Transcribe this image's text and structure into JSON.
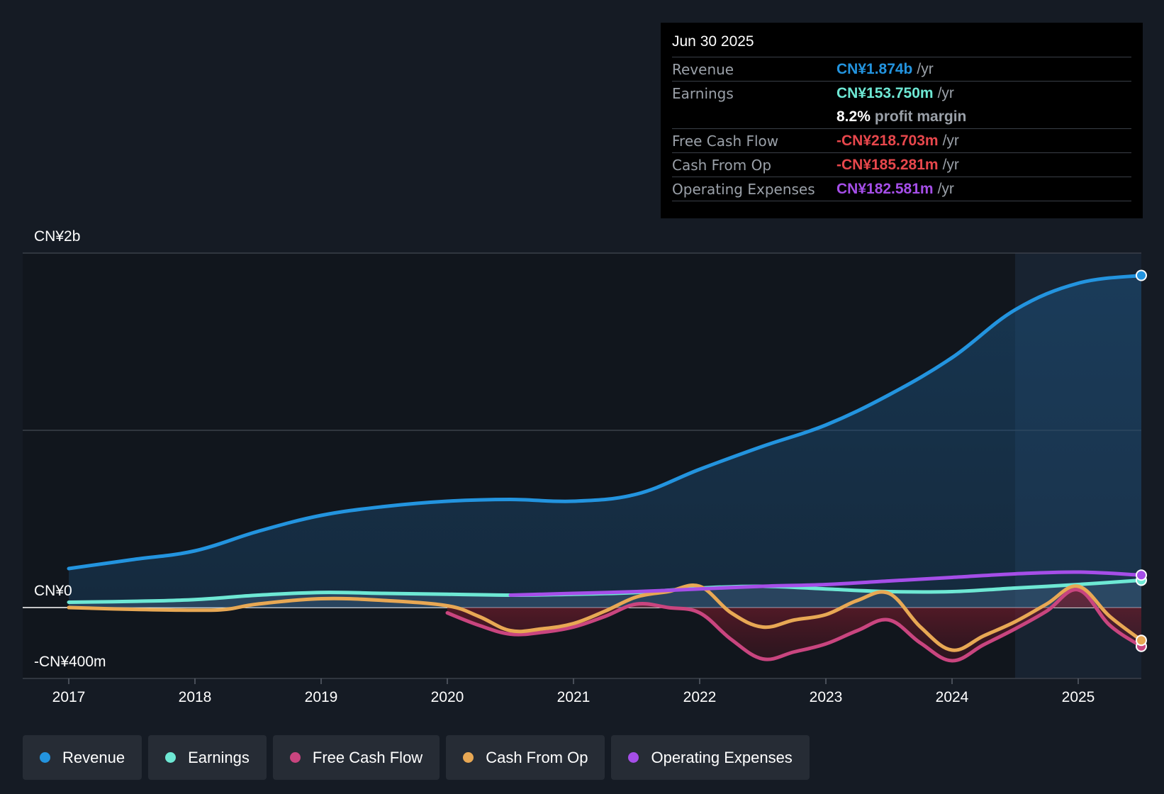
{
  "chart_data": {
    "type": "line",
    "title": "",
    "xlabel": "",
    "ylabel": "",
    "x_ticks": [
      "2017",
      "2018",
      "2019",
      "2020",
      "2021",
      "2022",
      "2023",
      "2024",
      "2025"
    ],
    "y_tick_labels": {
      "top": "CN¥2b",
      "zero": "CN¥0",
      "bottom": "-CN¥400m"
    },
    "ylim_millions": [
      -400,
      2000
    ],
    "xlim_years": [
      2017.0,
      2025.5
    ],
    "forecast_region_start": 2024.5,
    "grid": true,
    "series": [
      {
        "name": "Revenue",
        "color": "#2394df",
        "filled": true,
        "x": [
          2017.0,
          2017.5,
          2018.0,
          2018.5,
          2019.0,
          2019.5,
          2020.0,
          2020.5,
          2021.0,
          2021.5,
          2022.0,
          2022.5,
          2023.0,
          2023.5,
          2024.0,
          2024.5,
          2025.0,
          2025.5
        ],
        "values": [
          220,
          270,
          320,
          430,
          520,
          570,
          600,
          610,
          600,
          640,
          780,
          910,
          1030,
          1200,
          1410,
          1680,
          1830,
          1874
        ]
      },
      {
        "name": "Earnings",
        "color": "#6ee8d4",
        "filled": true,
        "x": [
          2017.0,
          2017.5,
          2018.0,
          2018.5,
          2019.0,
          2019.5,
          2020.0,
          2020.5,
          2021.0,
          2021.5,
          2022.0,
          2022.5,
          2023.0,
          2023.5,
          2024.0,
          2024.5,
          2025.0,
          2025.5
        ],
        "values": [
          30,
          35,
          45,
          70,
          85,
          80,
          75,
          70,
          75,
          85,
          110,
          120,
          105,
          90,
          90,
          110,
          130,
          154
        ]
      },
      {
        "name": "Free Cash Flow",
        "color": "#c9457f",
        "filled": true,
        "x": [
          2020.0,
          2020.25,
          2020.5,
          2020.75,
          2021.0,
          2021.25,
          2021.5,
          2021.75,
          2022.0,
          2022.25,
          2022.5,
          2022.75,
          2023.0,
          2023.25,
          2023.5,
          2023.75,
          2024.0,
          2024.25,
          2024.5,
          2024.75,
          2025.0,
          2025.25,
          2025.5
        ],
        "values": [
          -30,
          -100,
          -150,
          -140,
          -110,
          -50,
          20,
          0,
          -30,
          -180,
          -290,
          -250,
          -205,
          -130,
          -70,
          -200,
          -300,
          -210,
          -120,
          -20,
          100,
          -100,
          -219
        ]
      },
      {
        "name": "Cash From Op",
        "color": "#e8a854",
        "filled": false,
        "x": [
          2017.0,
          2017.5,
          2018.0,
          2018.25,
          2018.5,
          2019.0,
          2019.5,
          2020.0,
          2020.25,
          2020.5,
          2020.75,
          2021.0,
          2021.25,
          2021.5,
          2021.75,
          2022.0,
          2022.25,
          2022.5,
          2022.75,
          2023.0,
          2023.25,
          2023.5,
          2023.75,
          2024.0,
          2024.25,
          2024.5,
          2024.75,
          2025.0,
          2025.25,
          2025.5
        ],
        "values": [
          0,
          -10,
          -15,
          -10,
          20,
          50,
          40,
          10,
          -50,
          -130,
          -120,
          -90,
          -20,
          60,
          90,
          120,
          -30,
          -110,
          -70,
          -40,
          40,
          80,
          -110,
          -240,
          -160,
          -80,
          20,
          120,
          -50,
          -185
        ]
      },
      {
        "name": "Operating Expenses",
        "color": "#a54ee8",
        "filled": false,
        "x": [
          2020.5,
          2021.0,
          2021.5,
          2022.0,
          2022.5,
          2023.0,
          2023.5,
          2024.0,
          2024.5,
          2025.0,
          2025.5
        ],
        "values": [
          70,
          80,
          90,
          105,
          120,
          130,
          150,
          170,
          190,
          200,
          183
        ]
      }
    ]
  },
  "tooltip": {
    "date": "Jun 30 2025",
    "rows": [
      {
        "label": "Revenue",
        "value": "CN¥1.874b",
        "unit": "/yr",
        "color": "#2394df"
      },
      {
        "label": "Earnings",
        "value": "CN¥153.750m",
        "unit": "/yr",
        "color": "#6ee8d4"
      },
      {
        "label": "",
        "value": "8.2%",
        "unit": "profit margin",
        "color": "#ffffff"
      },
      {
        "label": "Free Cash Flow",
        "value": "-CN¥218.703m",
        "unit": "/yr",
        "color": "#e8474c"
      },
      {
        "label": "Cash From Op",
        "value": "-CN¥185.281m",
        "unit": "/yr",
        "color": "#e8474c"
      },
      {
        "label": "Operating Expenses",
        "value": "CN¥182.581m",
        "unit": "/yr",
        "color": "#a54ee8"
      }
    ]
  },
  "legend": [
    {
      "label": "Revenue",
      "color": "#2394df"
    },
    {
      "label": "Earnings",
      "color": "#6ee8d4"
    },
    {
      "label": "Free Cash Flow",
      "color": "#c9457f"
    },
    {
      "label": "Cash From Op",
      "color": "#e8a854"
    },
    {
      "label": "Operating Expenses",
      "color": "#a54ee8"
    }
  ]
}
